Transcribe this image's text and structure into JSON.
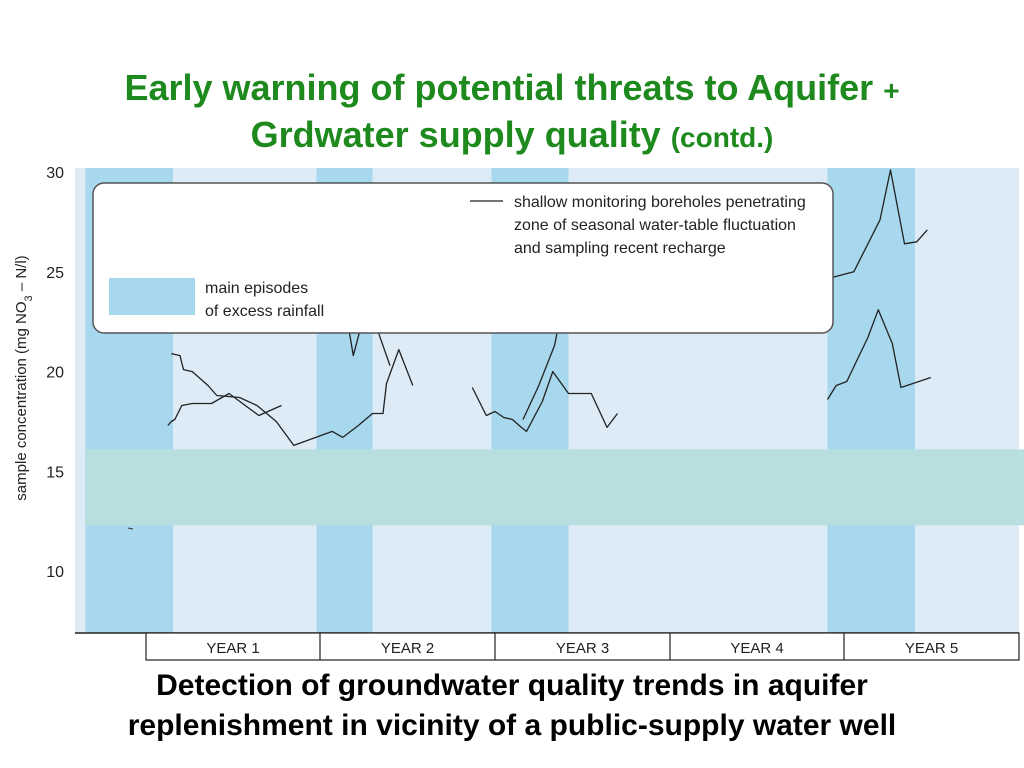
{
  "title": {
    "line1_main": "Early warning of potential threats to Aquifer",
    "line1_suffix": "+",
    "line2_main": "Grdwater supply quality",
    "line2_suffix": "(contd.)"
  },
  "caption": {
    "line1": "Detection of groundwater quality trends in aquifer",
    "line2": "replenishment in vicinity of a public-supply water well"
  },
  "chart_data": {
    "type": "line",
    "ylabel_prefix": "sample concentration (mg NO",
    "ylabel_sub": "3",
    "ylabel_suffix": " – N/l)",
    "ylim": [
      6.9,
      30.2
    ],
    "yticks": [
      10,
      15,
      20,
      25,
      30
    ],
    "xlim": [
      0,
      5.47
    ],
    "periods": [
      "YEAR 1",
      "YEAR 2",
      "YEAR 3",
      "YEAR 4",
      "YEAR 5"
    ],
    "rainfall_episodes": [
      [
        0.06,
        0.56
      ],
      [
        1.38,
        1.7
      ],
      [
        2.38,
        2.82
      ],
      [
        4.3,
        4.8
      ]
    ],
    "highlight_band": [
      12.3,
      16.1
    ],
    "colors": {
      "background": "#dcebf6",
      "rainfall": "#a7d8ee",
      "highlight": "#b8dee0",
      "line": "#222222",
      "title": "#1e8a1e"
    },
    "legend": {
      "line_label_1": "shallow monitoring boreholes penetrating",
      "line_label_2": "zone of seasonal water-table fluctuation",
      "line_label_3": "and sampling recent recharge",
      "rain_label_1": "main episodes",
      "rain_label_2": "of excess rainfall"
    },
    "series": [
      {
        "segments": [
          [
            [
              0.55,
              20.9
            ],
            [
              0.6,
              20.8
            ],
            [
              0.62,
              20.1
            ],
            [
              0.67,
              20.0
            ],
            [
              0.76,
              19.3
            ],
            [
              0.81,
              18.8
            ],
            [
              0.94,
              18.7
            ],
            [
              1.04,
              18.3
            ],
            [
              1.15,
              17.5
            ],
            [
              1.25,
              16.3
            ],
            [
              1.47,
              17.0
            ],
            [
              1.53,
              16.7
            ]
          ],
          [
            [
              1.54,
              23.4
            ],
            [
              1.59,
              20.8
            ],
            [
              1.65,
              22.8
            ],
            [
              1.7,
              22.8
            ],
            [
              1.8,
              20.3
            ]
          ],
          [
            [
              2.56,
              17.6
            ],
            [
              2.65,
              19.3
            ],
            [
              2.74,
              21.3
            ],
            [
              2.82,
              24.8
            ],
            [
              2.91,
              23.0
            ],
            [
              2.98,
              22.8
            ],
            [
              3.04,
              23.1
            ]
          ],
          [
            [
              4.32,
              24.7
            ],
            [
              4.45,
              25.0
            ],
            [
              4.6,
              27.6
            ],
            [
              4.66,
              30.1
            ],
            [
              4.74,
              26.4
            ],
            [
              4.81,
              26.5
            ],
            [
              4.87,
              27.1
            ]
          ]
        ]
      },
      {
        "segments": [
          [
            [
              0.53,
              17.3
            ],
            [
              0.55,
              17.5
            ],
            [
              0.57,
              17.6
            ],
            [
              0.61,
              18.3
            ],
            [
              0.67,
              18.4
            ],
            [
              0.78,
              18.4
            ],
            [
              0.88,
              18.9
            ],
            [
              1.05,
              17.8
            ],
            [
              1.18,
              18.3
            ]
          ],
          [
            [
              1.53,
              16.7
            ],
            [
              1.62,
              17.3
            ],
            [
              1.7,
              17.9
            ],
            [
              1.76,
              17.9
            ],
            [
              1.78,
              19.4
            ],
            [
              1.85,
              21.1
            ],
            [
              1.93,
              19.3
            ]
          ],
          [
            [
              2.27,
              19.2
            ],
            [
              2.35,
              17.8
            ],
            [
              2.4,
              18.0
            ],
            [
              2.45,
              17.7
            ],
            [
              2.5,
              17.6
            ],
            [
              2.55,
              17.2
            ],
            [
              2.58,
              17.0
            ],
            [
              2.67,
              18.5
            ],
            [
              2.73,
              20.0
            ],
            [
              2.82,
              18.9
            ],
            [
              2.95,
              18.9
            ],
            [
              3.04,
              17.2
            ],
            [
              3.1,
              17.9
            ]
          ],
          [
            [
              4.3,
              18.6
            ],
            [
              4.35,
              19.3
            ],
            [
              4.41,
              19.5
            ],
            [
              4.53,
              21.7
            ],
            [
              4.59,
              23.1
            ],
            [
              4.67,
              21.4
            ],
            [
              4.72,
              19.2
            ],
            [
              4.89,
              19.7
            ]
          ]
        ]
      }
    ]
  }
}
